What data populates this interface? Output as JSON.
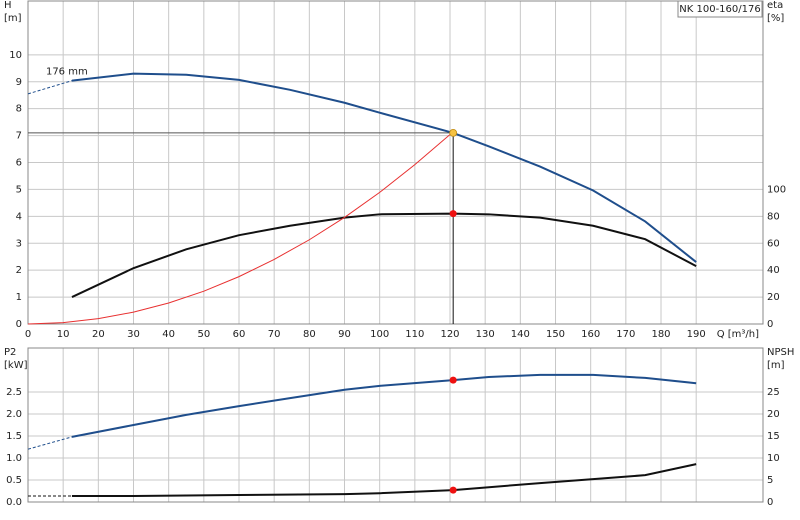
{
  "chart_data": [
    {
      "type": "line",
      "title": "NK 100-160/176",
      "annotation": "176 mm",
      "ylabel": [
        "H",
        "[m]"
      ],
      "y2label": [
        "eta",
        "[%]"
      ],
      "xlabel": "Q [m³/h]",
      "xlim": [
        0,
        209
      ],
      "xticks": [
        0,
        10,
        20,
        30,
        40,
        50,
        60,
        70,
        80,
        90,
        100,
        110,
        120,
        130,
        140,
        150,
        160,
        170,
        180,
        190
      ],
      "ylim": [
        0,
        12
      ],
      "yticks": [
        0,
        1,
        2,
        3,
        4,
        5,
        6,
        7,
        8,
        9,
        10
      ],
      "y2lim": [
        0,
        240
      ],
      "y2ticks": [
        0,
        20,
        40,
        60,
        80,
        100
      ],
      "grid": true,
      "show_xtick_labels": true,
      "crosshair": true,
      "series": [
        {
          "color": "#1f4e8c",
          "width": 2,
          "x": [
            12.5,
            30,
            45,
            60,
            74.5,
            90,
            100,
            120.9,
            131,
            145.6,
            160.7,
            175.5,
            190
          ],
          "values": [
            9.04,
            9.3,
            9.26,
            9.07,
            8.7,
            8.22,
            7.85,
            7.1,
            6.6,
            5.85,
            4.96,
            3.81,
            2.3
          ]
        },
        {
          "color": "#1f4e8c",
          "width": 1,
          "dashed": true,
          "x": [
            0,
            12.5
          ],
          "values": [
            8.55,
            9.04
          ]
        },
        {
          "color": "#111111",
          "width": 2,
          "axis": "y2",
          "x": [
            12.5,
            30,
            45,
            60,
            74.5,
            90,
            100,
            120.9,
            131,
            145.6,
            160.7,
            175.5,
            190
          ],
          "values": [
            20,
            41.5,
            55.5,
            66,
            73,
            79,
            81.5,
            82,
            81.5,
            79,
            73,
            63,
            43
          ]
        },
        {
          "color": "#e83030",
          "width": 1,
          "x": [
            0,
            10,
            20,
            30,
            40,
            50,
            60,
            70,
            80,
            90,
            100,
            110,
            120,
            120.9
          ],
          "values": [
            0,
            0.05,
            0.2,
            0.44,
            0.78,
            1.22,
            1.76,
            2.4,
            3.13,
            3.96,
            4.89,
            5.92,
            7.04,
            7.1
          ]
        }
      ],
      "operating_point": {
        "x": 120.9,
        "y": 7.1,
        "y2": 82
      },
      "point_colors": [
        "#f5c242",
        "#ee1111"
      ]
    },
    {
      "type": "line",
      "ylabel": [
        "P2",
        "[kW]"
      ],
      "y2label": [
        "NPSH",
        "[m]"
      ],
      "xlim": [
        0,
        209
      ],
      "xticks": [
        0,
        10,
        20,
        30,
        40,
        50,
        60,
        70,
        80,
        90,
        100,
        110,
        120,
        130,
        140,
        150,
        160,
        170,
        180,
        190
      ],
      "ylim": [
        0,
        3.5
      ],
      "yticks": [
        {
          "value": 0,
          "label": "0.0"
        },
        0.5,
        {
          "value": 1,
          "label": "1.0"
        },
        1.5,
        {
          "value": 2,
          "label": "2.0"
        },
        2.5
      ],
      "y2lim": [
        0,
        35
      ],
      "y2ticks": [
        0,
        5,
        10,
        15,
        20,
        25
      ],
      "grid": true,
      "show_xtick_labels": false,
      "crosshair": false,
      "series": [
        {
          "color": "#1f4e8c",
          "width": 2,
          "x": [
            12.5,
            30,
            45,
            60,
            74.5,
            90,
            100,
            120.9,
            131,
            145.6,
            160.7,
            175.5,
            190
          ],
          "values": [
            1.48,
            1.75,
            1.98,
            2.18,
            2.36,
            2.55,
            2.64,
            2.77,
            2.84,
            2.89,
            2.89,
            2.82,
            2.7
          ]
        },
        {
          "color": "#1f4e8c",
          "width": 1,
          "dashed": true,
          "x": [
            0,
            12.5
          ],
          "values": [
            1.2,
            1.48
          ]
        },
        {
          "color": "#111111",
          "width": 2,
          "axis": "y2",
          "x": [
            12.5,
            30,
            60,
            90,
            100,
            120.9,
            145.6,
            160.7,
            175.5,
            190
          ],
          "values": [
            1.35,
            1.35,
            1.6,
            1.8,
            2.0,
            2.7,
            4.3,
            5.2,
            6.1,
            8.6
          ]
        },
        {
          "color": "#111111",
          "width": 1,
          "dashed": true,
          "axis": "y2",
          "x": [
            0,
            12.5
          ],
          "values": [
            1.35,
            1.35
          ]
        }
      ],
      "operating_point": {
        "x": 120.9,
        "y": 2.77,
        "y2": 2.7
      },
      "point_colors": [
        "#ee1111",
        "#ee1111"
      ]
    }
  ]
}
